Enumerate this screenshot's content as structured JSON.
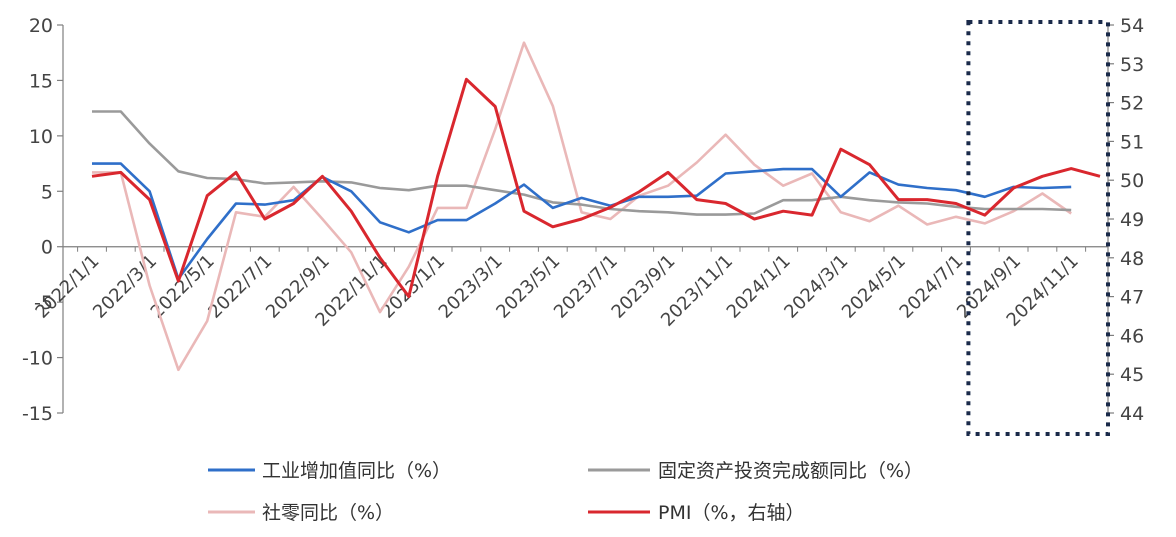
{
  "chart_data": {
    "type": "line",
    "categories": [
      "2022/1/1",
      "2022/2/1",
      "2022/3/1",
      "2022/4/1",
      "2022/5/1",
      "2022/6/1",
      "2022/7/1",
      "2022/8/1",
      "2022/9/1",
      "2022/10/1",
      "2022/11/1",
      "2022/12/1",
      "2023/1/1",
      "2023/2/1",
      "2023/3/1",
      "2023/4/1",
      "2023/5/1",
      "2023/6/1",
      "2023/7/1",
      "2023/8/1",
      "2023/9/1",
      "2023/10/1",
      "2023/11/1",
      "2023/12/1",
      "2024/1/1",
      "2024/2/1",
      "2024/3/1",
      "2024/4/1",
      "2024/5/1",
      "2024/6/1",
      "2024/7/1",
      "2024/8/1",
      "2024/9/1",
      "2024/10/1",
      "2024/11/1",
      "2024/12/1"
    ],
    "x_tick_labels": [
      "2022/1/1",
      "2022/3/1",
      "2022/5/1",
      "2022/7/1",
      "2022/9/1",
      "2022/11/1",
      "2023/1/1",
      "2023/3/1",
      "2023/5/1",
      "2023/7/1",
      "2023/9/1",
      "2023/11/1",
      "2024/1/1",
      "2024/3/1",
      "2024/5/1",
      "2024/7/1",
      "2024/9/1",
      "2024/11/1"
    ],
    "y_left": {
      "ylim": [
        -15,
        20
      ],
      "ticks": [
        "20",
        "15",
        "10",
        "5",
        "0",
        "-5",
        "-10",
        "-15"
      ]
    },
    "y_right": {
      "ylim": [
        44,
        54
      ],
      "ticks": [
        "54",
        "53",
        "52",
        "51",
        "50",
        "49",
        "48",
        "47",
        "46",
        "45",
        "44"
      ]
    },
    "series": [
      {
        "name": "工业增加值同比（%）",
        "axis": "left",
        "color": "#2f6fc9",
        "values": [
          7.5,
          7.5,
          5.0,
          -2.9,
          0.7,
          3.9,
          3.8,
          4.2,
          6.3,
          5.0,
          2.2,
          1.3,
          2.4,
          2.4,
          3.9,
          5.6,
          3.5,
          4.4,
          3.7,
          4.5,
          4.5,
          4.6,
          6.6,
          6.8,
          7.0,
          7.0,
          4.5,
          6.7,
          5.6,
          5.3,
          5.1,
          4.5,
          5.4,
          5.3,
          5.4,
          null
        ]
      },
      {
        "name": "固定资产投资完成额同比（%）",
        "axis": "left",
        "color": "#9a9a9a",
        "values": [
          12.2,
          12.2,
          9.3,
          6.8,
          6.2,
          6.1,
          5.7,
          5.8,
          5.9,
          5.8,
          5.3,
          5.1,
          5.5,
          5.5,
          5.1,
          4.7,
          4.0,
          3.8,
          3.4,
          3.2,
          3.1,
          2.9,
          2.9,
          3.0,
          4.2,
          4.2,
          4.5,
          4.2,
          4.0,
          3.9,
          3.6,
          3.4,
          3.4,
          3.4,
          3.3,
          null
        ]
      },
      {
        "name": "社零同比（%）",
        "axis": "left",
        "color": "#eab8b8",
        "values": [
          6.7,
          6.7,
          -3.5,
          -11.1,
          -6.7,
          3.1,
          2.7,
          5.4,
          2.5,
          -0.5,
          -5.9,
          -1.8,
          3.5,
          3.5,
          10.6,
          18.4,
          12.7,
          3.1,
          2.5,
          4.6,
          5.5,
          7.6,
          10.1,
          7.4,
          5.5,
          6.6,
          3.1,
          2.3,
          3.7,
          2.0,
          2.7,
          2.1,
          3.2,
          4.8,
          3.0,
          null
        ]
      },
      {
        "name": "PMI（%，右轴）",
        "axis": "right",
        "color": "#d9272e",
        "values": [
          50.1,
          50.2,
          49.5,
          47.4,
          49.6,
          50.2,
          49.0,
          49.4,
          50.1,
          49.2,
          48.0,
          47.0,
          50.1,
          52.6,
          51.9,
          49.2,
          48.8,
          49.0,
          49.3,
          49.7,
          50.2,
          49.5,
          49.4,
          49.0,
          49.2,
          49.1,
          50.8,
          50.4,
          49.5,
          49.5,
          49.4,
          49.1,
          49.8,
          50.1,
          50.3,
          50.1
        ]
      }
    ],
    "annotation": {
      "type": "dotted-box",
      "from_category": "2024/8/1",
      "to_category": "2024/12/1",
      "color": "#1a2a4a"
    },
    "grid": false,
    "legend_position": "bottom"
  }
}
